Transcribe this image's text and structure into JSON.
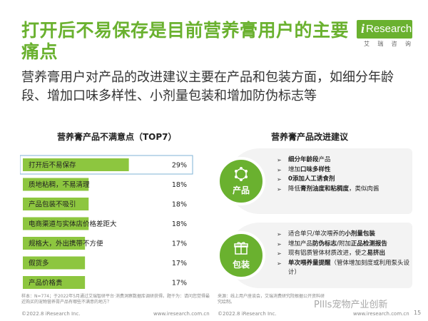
{
  "header": {
    "title": "打开后不易保存是目前营养膏用户的主要痛点",
    "subtitle": "营养膏用户对产品的改进建议主要在产品和包装方面，如细分年龄段、增加口味多样性、小剂量包装和增加防伪标志等"
  },
  "logo": {
    "letter": "i",
    "word": "Research",
    "sub": [
      "艾",
      "瑞",
      "咨",
      "询"
    ]
  },
  "left_section": {
    "title": "营养膏产品不满意点（TOP7）"
  },
  "right_section": {
    "title": "营养膏产品改进建议"
  },
  "chart_data": {
    "type": "bar",
    "title": "营养膏产品不满意点（TOP7）",
    "categories": [
      "打开后不易保存",
      "质地粘稠，不易清理",
      "产品包装不吸引",
      "电商渠道与实体店价格差距大",
      "规格大，外出携带不方便",
      "假货多",
      "产品价格贵"
    ],
    "values": [
      29,
      18,
      18,
      18,
      17,
      17,
      17
    ],
    "value_labels": [
      "29%",
      "18%",
      "18%",
      "18%",
      "17%",
      "17%",
      "17%"
    ],
    "unit": "%",
    "xlim": [
      0,
      40
    ],
    "bar_color": "#8dc63f",
    "highlight_index": 0
  },
  "cards": [
    {
      "label": "产品",
      "icon": "hexagon-nodes-icon",
      "items": [
        {
          "parts": [
            {
              "t": "细分年龄段",
              "b": true
            },
            {
              "t": "产品",
              "b": false
            }
          ]
        },
        {
          "parts": [
            {
              "t": "增加",
              "b": false
            },
            {
              "t": "口味多样性",
              "b": true
            }
          ]
        },
        {
          "parts": [
            {
              "t": "0添加人工诱食剂",
              "b": true
            }
          ]
        },
        {
          "parts": [
            {
              "t": "降低",
              "b": false
            },
            {
              "t": "膏剂油度和粘稠度",
              "b": true
            },
            {
              "t": "，类似肉酱",
              "b": false
            }
          ]
        }
      ]
    },
    {
      "label": "包装",
      "icon": "gift-box-icon",
      "items": [
        {
          "parts": [
            {
              "t": "适合单只/单次喂养的",
              "b": false
            },
            {
              "t": "小剂量包装",
              "b": true
            }
          ]
        },
        {
          "parts": [
            {
              "t": "增加产品",
              "b": false
            },
            {
              "t": "防伪标志",
              "b": true
            },
            {
              "t": "/附加",
              "b": false
            },
            {
              "t": "正品检测报告",
              "b": true
            }
          ]
        },
        {
          "parts": [
            {
              "t": "现有铝质管体材质改进，使之",
              "b": false
            },
            {
              "t": "易挤出",
              "b": true
            }
          ]
        },
        {
          "parts": [
            {
              "t": "单次喂养量提醒",
              "b": true
            },
            {
              "t": "（管体增加刻度或利用泵头设计）",
              "b": false
            }
          ]
        }
      ]
    }
  ],
  "footer": {
    "note_left": "样本：N=774；于2022年5月通过艾瑞智研平台·消费洞察数据库调研获得。题干为：请问您觉得最近购买的宠物营养膏产品有哪些不满意的地方？",
    "note_right": "来源：线上用户座谈会，艾瑞消费研究院根据公开资料研究绘制。",
    "copyright_left": "©2022.8 iResearch Inc.",
    "url_left": "www.iresearch.com.cn",
    "copyright_right": "©2022.8 iResearch Inc.",
    "url_right": "www.iresearch.com.cn",
    "page": "15",
    "watermark": "Pllls宠物产业创新"
  }
}
